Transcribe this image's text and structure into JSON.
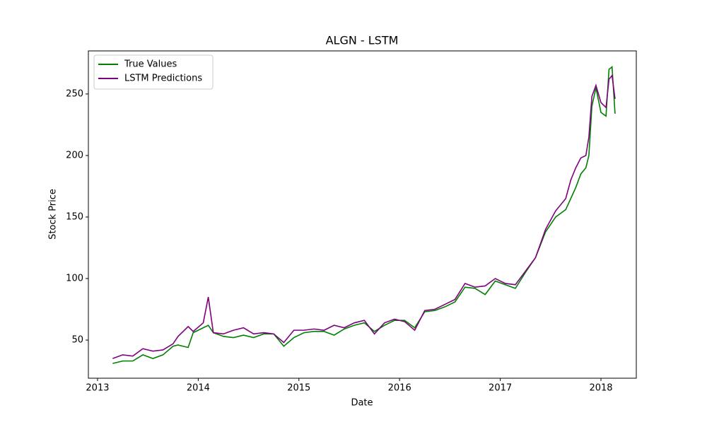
{
  "chart_data": {
    "type": "line",
    "title": "ALGN - LSTM",
    "x_label": "Date",
    "y_label": "Stock Price",
    "x": [
      2013.15,
      2013.25,
      2013.35,
      2013.45,
      2013.55,
      2013.65,
      2013.75,
      2013.8,
      2013.9,
      2013.95,
      2014.05,
      2014.1,
      2014.15,
      2014.25,
      2014.35,
      2014.45,
      2014.55,
      2014.65,
      2014.75,
      2014.85,
      2014.95,
      2015.05,
      2015.15,
      2015.25,
      2015.35,
      2015.45,
      2015.55,
      2015.65,
      2015.75,
      2015.85,
      2015.95,
      2016.05,
      2016.15,
      2016.25,
      2016.35,
      2016.45,
      2016.55,
      2016.65,
      2016.75,
      2016.85,
      2016.95,
      2017.05,
      2017.15,
      2017.25,
      2017.35,
      2017.45,
      2017.55,
      2017.65,
      2017.7,
      2017.75,
      2017.8,
      2017.85,
      2017.88,
      2017.91,
      2017.95,
      2018.0,
      2018.05,
      2018.08,
      2018.11,
      2018.14
    ],
    "series": [
      {
        "name": "True Values",
        "color": "#008000",
        "values": [
          31,
          33,
          33,
          38,
          35,
          38,
          45,
          46,
          44,
          56,
          60,
          62,
          56,
          53,
          52,
          54,
          52,
          55,
          55,
          45,
          52,
          56,
          57,
          57,
          54,
          59,
          62,
          64,
          57,
          62,
          66,
          66,
          60,
          73,
          74,
          77,
          81,
          93,
          92,
          87,
          98,
          95,
          92,
          105,
          117,
          138,
          150,
          156,
          165,
          174,
          185,
          190,
          200,
          240,
          255,
          235,
          232,
          270,
          272,
          234
        ]
      },
      {
        "name": "LSTM Predictions",
        "color": "#800080",
        "values": [
          35,
          38,
          37,
          43,
          41,
          42,
          47,
          53,
          61,
          57,
          64,
          85,
          56,
          55,
          58,
          60,
          55,
          56,
          55,
          48,
          58,
          58,
          59,
          58,
          62,
          60,
          64,
          66,
          55,
          64,
          67,
          65,
          58,
          74,
          75,
          79,
          83,
          96,
          93,
          94,
          100,
          96,
          95,
          106,
          117,
          140,
          155,
          165,
          180,
          190,
          198,
          200,
          215,
          248,
          257,
          243,
          239,
          262,
          265,
          246
        ]
      }
    ],
    "xlim": [
      2012.909,
      2018.351
    ],
    "xticks": [
      2013,
      2014,
      2015,
      2016,
      2017,
      2018
    ],
    "ylim": [
      19,
      285
    ],
    "yticks": [
      50,
      100,
      150,
      200,
      250
    ],
    "legend": "upper left"
  }
}
